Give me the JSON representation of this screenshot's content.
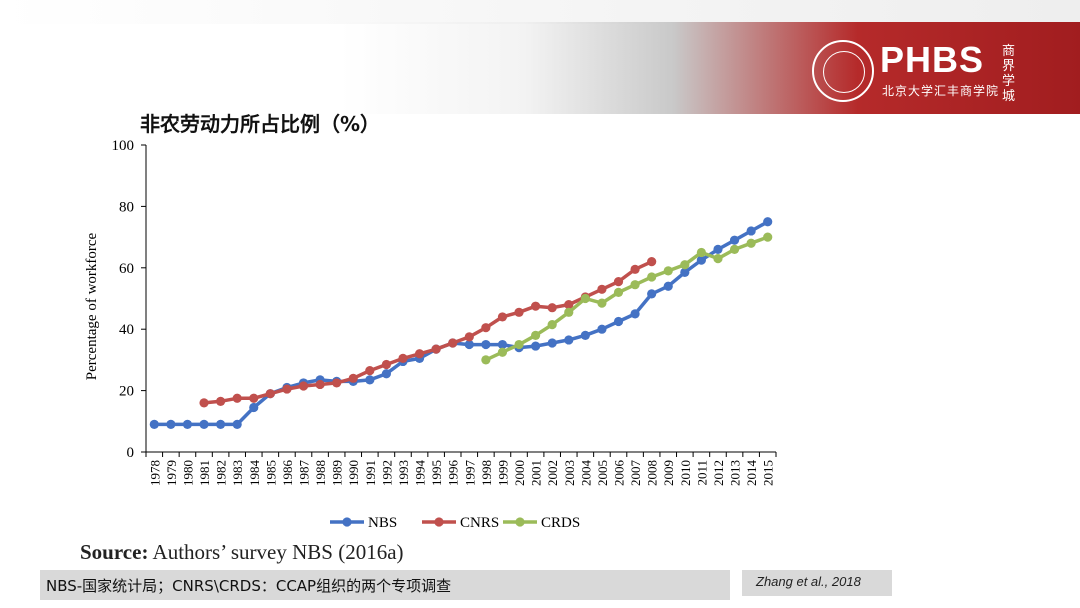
{
  "logo": {
    "name": "PHBS",
    "subtitle": "北京大学汇丰商学院",
    "seal_text": "PEKING UNIVERSITY 1898",
    "calligraphy": "商界学城"
  },
  "colors": {
    "nbs": "#4472c4",
    "cnrs": "#c0504d",
    "crds": "#9bbb59"
  },
  "chart_data": {
    "type": "line",
    "title": "非农劳动力所占比例（%）",
    "ylabel": "Percentage of workforce",
    "xlabel": "",
    "ylim": [
      0,
      100
    ],
    "yticks": [
      "0",
      "20",
      "40",
      "60",
      "80",
      "100"
    ],
    "legend_position": "bottom",
    "grid": false,
    "x": [
      "1978",
      "1979",
      "1980",
      "1981",
      "1982",
      "1983",
      "1984",
      "1985",
      "1986",
      "1987",
      "1988",
      "1989",
      "1990",
      "1991",
      "1992",
      "1993",
      "1994",
      "1995",
      "1996",
      "1997",
      "1998",
      "1999",
      "2000",
      "2001",
      "2002",
      "2003",
      "2004",
      "2005",
      "2006",
      "2007",
      "2008",
      "2009",
      "2010",
      "2011",
      "2012",
      "2013",
      "2014",
      "2015"
    ],
    "series": [
      {
        "name": "NBS",
        "color": "#4472c4",
        "values": [
          9,
          9,
          9,
          9,
          9,
          9,
          14.5,
          19,
          21,
          22.5,
          23.5,
          23,
          23,
          23.5,
          25.5,
          29.5,
          30.5,
          33.5,
          35.5,
          35,
          35,
          35,
          34,
          34.5,
          35.5,
          36.5,
          38,
          40,
          42.5,
          45,
          51.5,
          54,
          58.5,
          62.5,
          66,
          69,
          72,
          75
        ]
      },
      {
        "name": "CNRS",
        "color": "#c0504d",
        "values": [
          null,
          null,
          null,
          16,
          16.5,
          17.5,
          17.5,
          19,
          20.5,
          21.5,
          22,
          22.5,
          24,
          26.5,
          28.5,
          30.5,
          32,
          33.5,
          35.5,
          37.5,
          40.5,
          44,
          45.5,
          47.5,
          47,
          48,
          50.5,
          53,
          55.5,
          59.5,
          62,
          null,
          null,
          null,
          null,
          null,
          null,
          null
        ]
      },
      {
        "name": "CRDS",
        "color": "#9bbb59",
        "values": [
          null,
          null,
          null,
          null,
          null,
          null,
          null,
          null,
          null,
          null,
          null,
          null,
          null,
          null,
          null,
          null,
          null,
          null,
          null,
          null,
          30,
          32.5,
          35,
          38,
          41.5,
          45.5,
          50,
          48.5,
          52,
          54.5,
          57,
          59,
          61,
          65,
          63,
          66,
          68,
          70
        ]
      }
    ]
  },
  "source": {
    "label": "Source:",
    "text": " Authors’ survey NBS (2016a)"
  },
  "note": "NBS-国家统计局；CNRS\\CRDS：CCAP组织的两个专项调查",
  "citation": "Zhang et al., 2018"
}
